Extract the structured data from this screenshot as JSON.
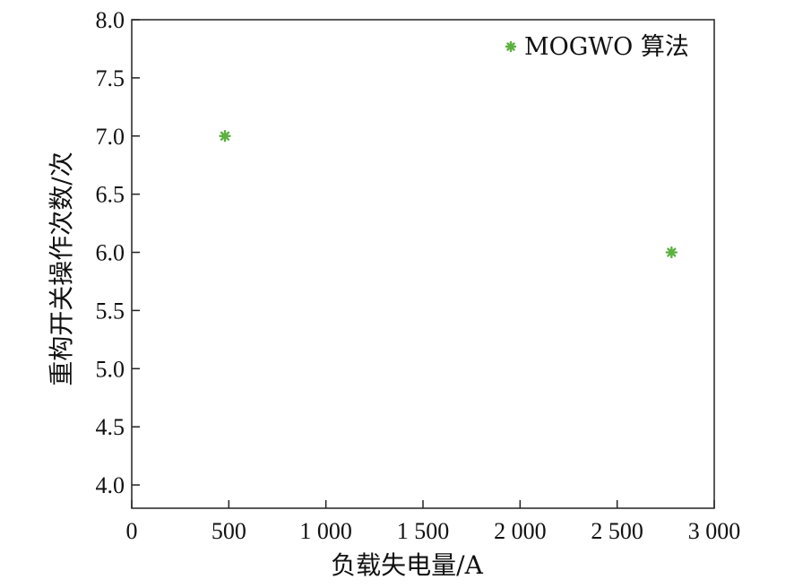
{
  "chart_data": {
    "type": "scatter",
    "xlabel": "负载失电量/A",
    "ylabel": "重构开关操作次数/次",
    "xlim": [
      0,
      3000
    ],
    "ylim": [
      3.8,
      8.0
    ],
    "xticks": [
      0,
      500,
      1000,
      1500,
      2000,
      2500,
      3000
    ],
    "xtick_labels": [
      "0",
      "500",
      "1 000",
      "1 500",
      "2 000",
      "2 500",
      "3 000"
    ],
    "yticks": [
      4.0,
      4.5,
      5.0,
      5.5,
      6.0,
      6.5,
      7.0,
      7.5,
      8.0
    ],
    "ytick_labels": [
      "4.0",
      "4.5",
      "5.0",
      "5.5",
      "6.0",
      "6.5",
      "7.0",
      "7.5",
      "8.0"
    ],
    "grid": false,
    "legend_position": "top-right",
    "series": [
      {
        "name": "MOGWO 算法",
        "marker": "asterisk",
        "color": "#5cb040",
        "points": [
          {
            "x": 480,
            "y": 7.0
          },
          {
            "x": 2780,
            "y": 6.0
          }
        ]
      }
    ]
  }
}
